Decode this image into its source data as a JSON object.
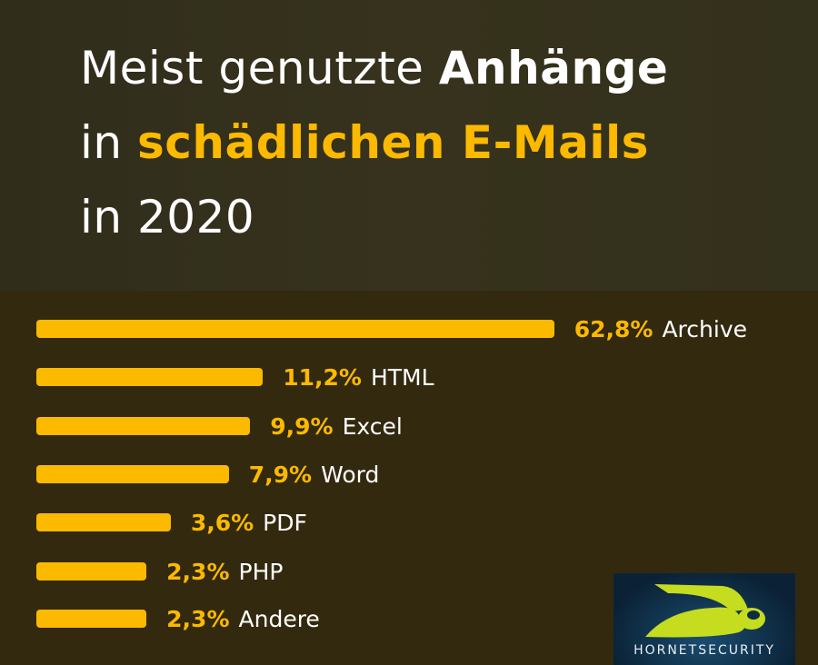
{
  "title": {
    "line1_a": "Meist genutzte ",
    "line1_b": "Anhänge",
    "line2_a": "in ",
    "line2_b": "schädlichen E-Mails",
    "line3": "in 2020"
  },
  "chart_data": {
    "type": "bar",
    "orientation": "horizontal",
    "title": "Meist genutzte Anhänge in schädlichen E-Mails in 2020",
    "categories": [
      "Archive",
      "HTML",
      "Excel",
      "Word",
      "PDF",
      "PHP",
      "Andere"
    ],
    "values": [
      62.8,
      11.2,
      9.9,
      7.9,
      3.6,
      2.3,
      2.3
    ],
    "labels": [
      "62,8%",
      "11,2%",
      "9,9%",
      "7,9%",
      "3,6%",
      "2,3%",
      "2,3%"
    ],
    "unit": "%",
    "bar_color": "#fbb900"
  },
  "logo": {
    "text": "HORNETSECURITY"
  }
}
